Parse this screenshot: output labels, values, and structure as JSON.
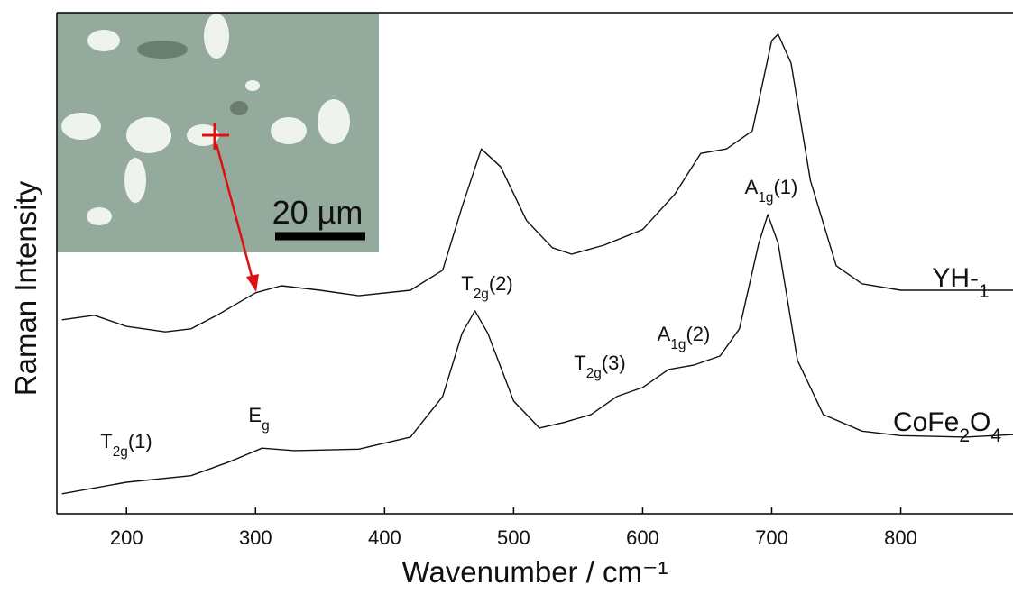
{
  "chart_data": {
    "type": "line",
    "x_label": "Wavenumber / cm⁻¹",
    "y_label": "Raman Intensity",
    "xlim": [
      146,
      887
    ],
    "ylim": [
      0,
      100
    ],
    "xticks": [
      200,
      300,
      400,
      500,
      600,
      700,
      800
    ],
    "series": [
      {
        "name": "YH-1",
        "color": "#111111",
        "x": [
          150,
          175,
          200,
          230,
          250,
          270,
          300,
          320,
          350,
          380,
          420,
          445,
          460,
          475,
          490,
          510,
          530,
          545,
          570,
          600,
          625,
          645,
          665,
          685,
          700,
          705,
          715,
          730,
          750,
          770,
          800,
          850,
          887
        ],
        "values": [
          38.7,
          39.6,
          37.4,
          36.3,
          36.9,
          39.6,
          44.1,
          45.5,
          44.6,
          43.5,
          44.6,
          48.6,
          61.2,
          72.8,
          69.2,
          58.5,
          53.1,
          51.8,
          53.6,
          56.7,
          63.8,
          71.9,
          72.8,
          76.4,
          94.4,
          95.7,
          89.9,
          66.5,
          49.5,
          45.9,
          44.6,
          44.6,
          44.6
        ]
      },
      {
        "name": "CoFe2O4",
        "color": "#111111",
        "x": [
          150,
          200,
          250,
          280,
          305,
          330,
          380,
          420,
          445,
          460,
          470,
          480,
          500,
          520,
          540,
          560,
          580,
          600,
          620,
          640,
          660,
          675,
          690,
          697,
          705,
          720,
          740,
          770,
          800,
          850,
          887
        ],
        "values": [
          4.0,
          6.3,
          7.6,
          10.4,
          13.1,
          12.6,
          12.9,
          15.3,
          23.4,
          36.0,
          40.5,
          36.0,
          22.5,
          17.1,
          18.3,
          19.8,
          23.4,
          25.2,
          28.8,
          29.7,
          31.5,
          36.9,
          54.0,
          59.7,
          54.0,
          30.6,
          19.8,
          16.5,
          15.6,
          15.3,
          15.8
        ]
      }
    ],
    "annotations": [
      "T2g(1)",
      "Eg",
      "T2g(2)",
      "T2g(3)",
      "A1g(2)",
      "A1g(1)"
    ]
  },
  "inset": {
    "scale_label": "20 µm"
  }
}
